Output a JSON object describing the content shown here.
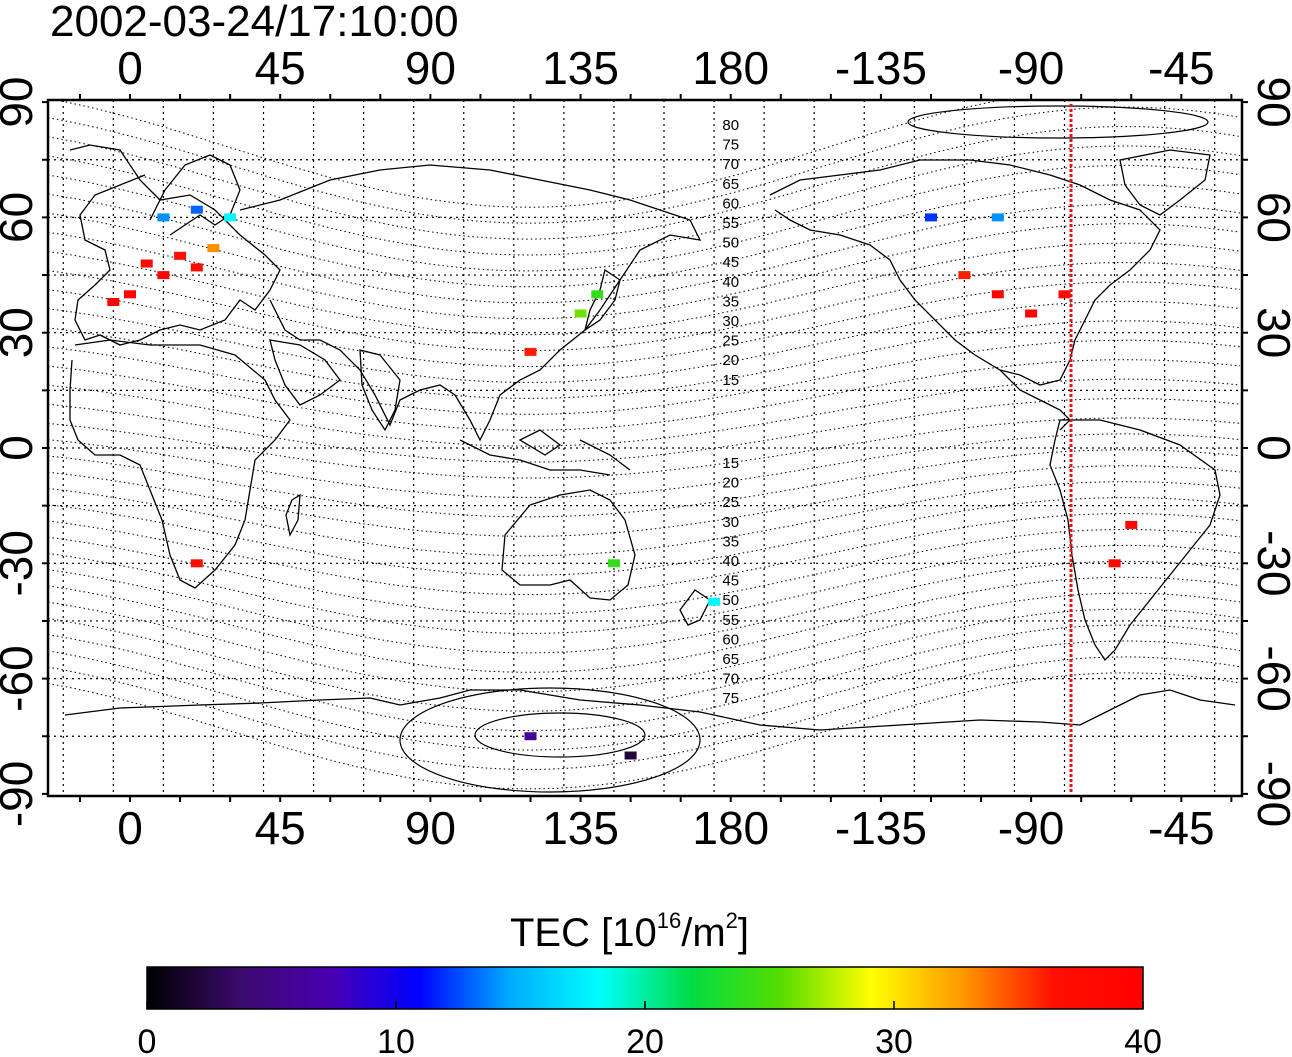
{
  "title": "2002-03-24/17:10:00",
  "map": {
    "x_ticks": [
      "0",
      "45",
      "90",
      "135",
      "180",
      "-135",
      "-90",
      "-45"
    ],
    "y_ticks": [
      "90",
      "60",
      "30",
      "0",
      "-30",
      "-60",
      "-90"
    ],
    "contour_labels_north": [
      "80",
      "75",
      "70",
      "65",
      "60",
      "55",
      "50",
      "45",
      "40",
      "35",
      "30",
      "25",
      "20",
      "15"
    ],
    "contour_labels_south": [
      "15",
      "20",
      "25",
      "30",
      "35",
      "40",
      "45",
      "50",
      "55",
      "60",
      "65",
      "70",
      "75"
    ],
    "marker_color": "#ee1111",
    "grid": true,
    "data_points": [
      {
        "lon": 5,
        "lat": 48,
        "tec": 38
      },
      {
        "lon": 10,
        "lat": 45,
        "tec": 39
      },
      {
        "lon": 15,
        "lat": 50,
        "tec": 37
      },
      {
        "lon": 20,
        "lat": 47,
        "tec": 38
      },
      {
        "lon": 25,
        "lat": 52,
        "tec": 33
      },
      {
        "lon": 0,
        "lat": 40,
        "tec": 39
      },
      {
        "lon": -5,
        "lat": 38,
        "tec": 39
      },
      {
        "lon": 10,
        "lat": 60,
        "tec": 14
      },
      {
        "lon": 20,
        "lat": 62,
        "tec": 13
      },
      {
        "lon": 30,
        "lat": 60,
        "tec": 18
      },
      {
        "lon": 135,
        "lat": 35,
        "tec": 26
      },
      {
        "lon": 140,
        "lat": 40,
        "tec": 24
      },
      {
        "lon": 120,
        "lat": 25,
        "tec": 36
      },
      {
        "lon": -100,
        "lat": 40,
        "tec": 39
      },
      {
        "lon": -90,
        "lat": 35,
        "tec": 39
      },
      {
        "lon": -80,
        "lat": 40,
        "tec": 38
      },
      {
        "lon": -110,
        "lat": 45,
        "tec": 36
      },
      {
        "lon": -120,
        "lat": 60,
        "tec": 12
      },
      {
        "lon": -100,
        "lat": 60,
        "tec": 14
      },
      {
        "lon": -60,
        "lat": -20,
        "tec": 39
      },
      {
        "lon": -65,
        "lat": -30,
        "tec": 39
      },
      {
        "lon": 20,
        "lat": -30,
        "tec": 37
      },
      {
        "lon": 145,
        "lat": -30,
        "tec": 24
      },
      {
        "lon": 175,
        "lat": -40,
        "tec": 18
      },
      {
        "lon": 120,
        "lat": -75,
        "tec": 6
      },
      {
        "lon": 150,
        "lat": -80,
        "tec": 2
      }
    ]
  },
  "colorbar": {
    "title": "TEC  [10",
    "exp1": "16",
    "unit": "/m",
    "exp2": "2",
    "close": "]",
    "ticks": [
      "0",
      "10",
      "20",
      "30",
      "40"
    ],
    "range": [
      0,
      40
    ],
    "stops": [
      "#000000",
      "#3a0a6a",
      "#4a00b0",
      "#0000ff",
      "#00aaff",
      "#00ffff",
      "#00dd44",
      "#55dd00",
      "#ffff00",
      "#ff9900",
      "#ff1100",
      "#ff0000"
    ]
  }
}
